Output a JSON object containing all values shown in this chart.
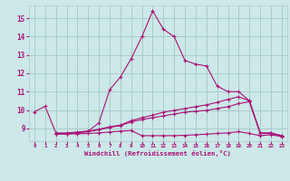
{
  "xlabel": "Windchill (Refroidissement éolien,°C)",
  "bg_color": "#cce8e8",
  "grid_color": "#aacccc",
  "line_color": "#aa1177",
  "xlim": [
    -0.5,
    23.5
  ],
  "ylim": [
    8.3,
    15.7
  ],
  "xticks": [
    0,
    1,
    2,
    3,
    4,
    5,
    6,
    7,
    8,
    9,
    10,
    11,
    12,
    13,
    14,
    15,
    16,
    17,
    18,
    19,
    20,
    21,
    22,
    23
  ],
  "yticks": [
    9,
    10,
    11,
    12,
    13,
    14,
    15
  ],
  "line1_x": [
    0,
    1,
    2,
    3,
    4,
    5,
    6,
    7,
    8,
    9,
    10,
    11,
    12,
    13,
    14,
    15,
    16,
    17,
    18,
    19,
    20,
    21,
    22,
    23
  ],
  "line1_y": [
    9.9,
    10.2,
    8.75,
    8.75,
    8.8,
    8.85,
    9.3,
    11.1,
    11.8,
    12.8,
    14.0,
    15.4,
    14.4,
    14.0,
    12.7,
    12.5,
    12.4,
    11.3,
    11.0,
    11.0,
    10.5,
    8.75,
    8.75,
    8.55
  ],
  "line2_x": [
    2,
    3,
    4,
    5,
    6,
    7,
    8,
    9,
    10,
    11,
    12,
    13,
    14,
    15,
    16,
    17,
    18,
    19,
    20,
    21,
    22,
    23
  ],
  "line2_y": [
    8.7,
    8.7,
    8.7,
    8.72,
    8.75,
    8.8,
    8.85,
    8.88,
    8.6,
    8.6,
    8.6,
    8.6,
    8.62,
    8.65,
    8.68,
    8.72,
    8.75,
    8.82,
    8.72,
    8.6,
    8.65,
    8.55
  ],
  "line3_x": [
    2,
    3,
    4,
    5,
    6,
    7,
    8,
    9,
    10,
    11,
    12,
    13,
    14,
    15,
    16,
    17,
    18,
    19,
    20,
    21,
    22,
    23
  ],
  "line3_y": [
    8.7,
    8.7,
    8.75,
    8.82,
    8.92,
    9.05,
    9.15,
    9.35,
    9.48,
    9.58,
    9.68,
    9.78,
    9.88,
    9.93,
    9.98,
    10.08,
    10.18,
    10.35,
    10.45,
    8.72,
    8.72,
    8.6
  ],
  "line4_x": [
    2,
    3,
    4,
    5,
    6,
    7,
    8,
    9,
    10,
    11,
    12,
    13,
    14,
    15,
    16,
    17,
    18,
    19,
    20,
    21,
    22,
    23
  ],
  "line4_y": [
    8.7,
    8.7,
    8.75,
    8.85,
    8.95,
    9.08,
    9.18,
    9.42,
    9.58,
    9.72,
    9.88,
    9.98,
    10.08,
    10.18,
    10.28,
    10.42,
    10.58,
    10.72,
    10.5,
    8.72,
    8.75,
    8.6
  ]
}
